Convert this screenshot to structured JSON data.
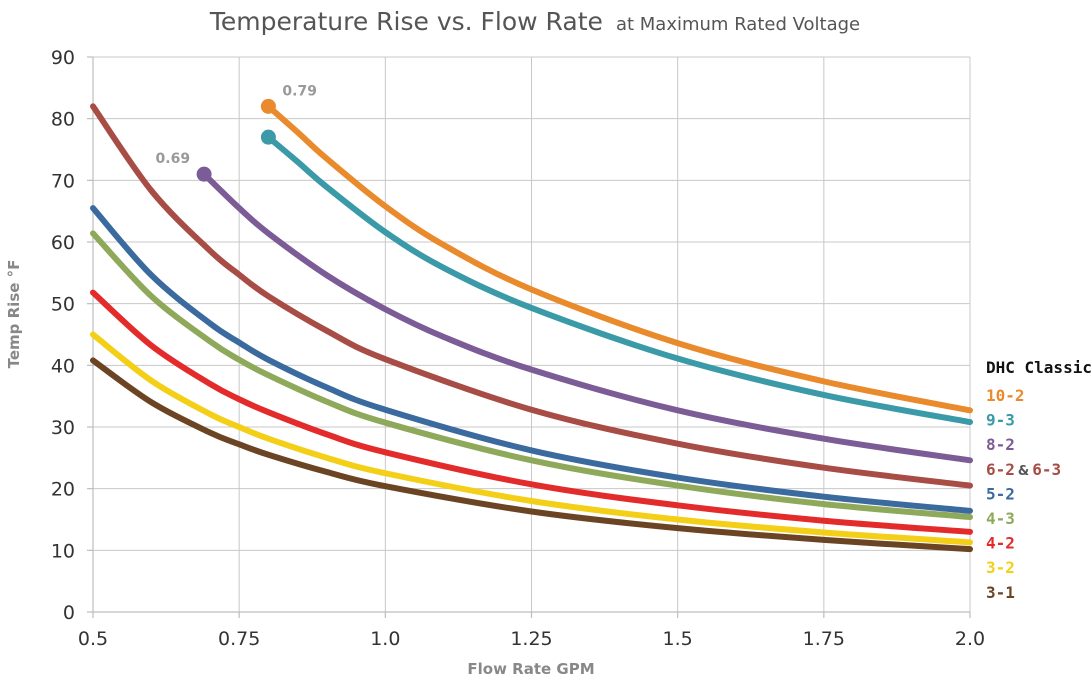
{
  "chart_data": {
    "type": "line",
    "title": "Temperature Rise vs. Flow Rate",
    "subtitle": "at Maximum Rated Voltage",
    "xlabel": "Flow Rate GPM",
    "ylabel": "Temp Rise °F",
    "xlim": [
      0.5,
      2.0
    ],
    "ylim": [
      0,
      90
    ],
    "xticks": [
      "0.5",
      "0.75",
      "1.0",
      "1.25",
      "1.5",
      "1.75",
      "2.0"
    ],
    "yticks": [
      "0",
      "10",
      "20",
      "30",
      "40",
      "50",
      "60",
      "70",
      "80",
      "90"
    ],
    "grid": true,
    "legend": {
      "title": "DHC Classic",
      "placement": "right",
      "entries": [
        {
          "label": "10-2",
          "color": "#e98a2c"
        },
        {
          "label": "9-3",
          "color": "#3a9aa7"
        },
        {
          "label": "8-2",
          "color": "#7b5c96"
        },
        {
          "label": "6-2",
          "sep": "&",
          "label2": "6-3",
          "color": "#a84c46"
        },
        {
          "label": "5-2",
          "color": "#3a6a9e"
        },
        {
          "label": "4-3",
          "color": "#8ea95a"
        },
        {
          "label": "4-2",
          "color": "#e32b2b"
        },
        {
          "label": "3-2",
          "color": "#f4cf17"
        },
        {
          "label": "3-1",
          "color": "#6b4423"
        }
      ]
    },
    "series": [
      {
        "name": "10-2",
        "color": "#e98a2c",
        "marker_start": true,
        "start_label": "0.79",
        "x": [
          0.8,
          0.85,
          0.9,
          1.0,
          1.1,
          1.25,
          1.5,
          1.75,
          2.0
        ],
        "y": [
          82,
          77.8,
          73.5,
          65.8,
          59.5,
          52.3,
          43.6,
          37.4,
          32.7
        ]
      },
      {
        "name": "9-3",
        "color": "#3a9aa7",
        "marker_start": true,
        "x": [
          0.8,
          0.85,
          0.9,
          1.0,
          1.1,
          1.25,
          1.5,
          1.75,
          2.0
        ],
        "y": [
          77,
          73,
          68.9,
          61.6,
          55.8,
          49.3,
          41.1,
          35.2,
          30.8
        ]
      },
      {
        "name": "8-2",
        "color": "#7b5c96",
        "marker_start": true,
        "start_label": "0.69",
        "x": [
          0.69,
          0.75,
          0.8,
          0.9,
          1.0,
          1.1,
          1.25,
          1.5,
          1.75,
          2.0
        ],
        "y": [
          71,
          65.5,
          61.4,
          54.6,
          49.1,
          44.6,
          39.3,
          32.7,
          28.1,
          24.6
        ]
      },
      {
        "name": "6-2 & 6-3",
        "color": "#a84c46",
        "x": [
          0.5,
          0.6,
          0.7,
          0.75,
          0.8,
          0.9,
          1.0,
          1.25,
          1.5,
          1.75,
          2.0
        ],
        "y": [
          82,
          68.3,
          58.6,
          54.7,
          51.2,
          45.6,
          41,
          32.8,
          27.3,
          23.4,
          20.5
        ]
      },
      {
        "name": "5-2",
        "color": "#3a6a9e",
        "x": [
          0.5,
          0.6,
          0.7,
          0.75,
          0.8,
          0.9,
          1.0,
          1.25,
          1.5,
          1.75,
          2.0
        ],
        "y": [
          65.5,
          54.6,
          46.8,
          43.7,
          40.9,
          36.4,
          32.8,
          26.2,
          21.8,
          18.7,
          16.4
        ]
      },
      {
        "name": "4-3",
        "color": "#8ea95a",
        "x": [
          0.5,
          0.6,
          0.7,
          0.75,
          0.8,
          0.9,
          1.0,
          1.25,
          1.5,
          1.75,
          2.0
        ],
        "y": [
          61.4,
          51.2,
          43.9,
          40.9,
          38.4,
          34.1,
          30.7,
          24.6,
          20.5,
          17.5,
          15.4
        ]
      },
      {
        "name": "4-2",
        "color": "#e32b2b",
        "x": [
          0.5,
          0.6,
          0.7,
          0.75,
          0.8,
          0.9,
          1.0,
          1.25,
          1.5,
          1.75,
          2.0
        ],
        "y": [
          51.8,
          43.2,
          37,
          34.5,
          32.4,
          28.8,
          25.9,
          20.7,
          17.3,
          14.8,
          13
        ]
      },
      {
        "name": "3-2",
        "color": "#f4cf17",
        "x": [
          0.5,
          0.6,
          0.7,
          0.75,
          0.8,
          0.9,
          1.0,
          1.25,
          1.5,
          1.75,
          2.0
        ],
        "y": [
          45,
          37.5,
          32.1,
          30,
          28.1,
          25,
          22.5,
          18,
          15,
          12.9,
          11.3
        ]
      },
      {
        "name": "3-1",
        "color": "#6b4423",
        "x": [
          0.5,
          0.6,
          0.7,
          0.75,
          0.8,
          0.9,
          1.0,
          1.25,
          1.5,
          1.75,
          2.0
        ],
        "y": [
          40.8,
          34,
          29.1,
          27.2,
          25.5,
          22.7,
          20.4,
          16.3,
          13.6,
          11.7,
          10.2
        ]
      }
    ]
  }
}
